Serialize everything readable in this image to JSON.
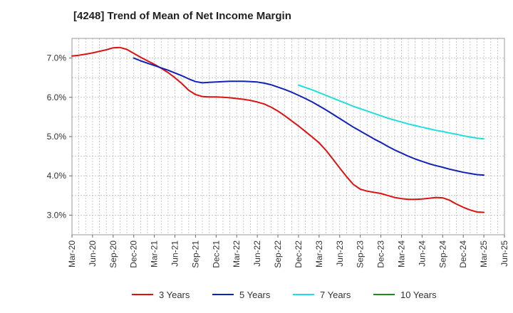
{
  "chart_data": {
    "type": "line",
    "title": "[4248]  Trend of Mean of Net Income Margin",
    "xlabel": "",
    "ylabel": "",
    "x_start": "2020-03",
    "x_end": "2025-06",
    "xticks": [
      "Mar-20",
      "Jun-20",
      "Sep-20",
      "Dec-20",
      "Mar-21",
      "Jun-21",
      "Sep-21",
      "Dec-21",
      "Mar-22",
      "Jun-22",
      "Sep-22",
      "Dec-22",
      "Mar-23",
      "Jun-23",
      "Sep-23",
      "Dec-23",
      "Mar-24",
      "Jun-24",
      "Sep-24",
      "Dec-24",
      "Mar-25",
      "Jun-25"
    ],
    "ylim": [
      2.5,
      7.5
    ],
    "yticks": [
      3.0,
      4.0,
      5.0,
      6.0,
      7.0
    ],
    "ytick_labels": [
      "3.0%",
      "4.0%",
      "5.0%",
      "6.0%",
      "7.0%"
    ],
    "grid": true,
    "legend_position": "bottom",
    "series": [
      {
        "name": "3 Years",
        "color": "#dd1111",
        "points": [
          [
            "2020-03",
            7.05
          ],
          [
            "2020-04",
            7.07
          ],
          [
            "2020-05",
            7.1
          ],
          [
            "2020-06",
            7.13
          ],
          [
            "2020-07",
            7.17
          ],
          [
            "2020-08",
            7.21
          ],
          [
            "2020-09",
            7.26
          ],
          [
            "2020-10",
            7.27
          ],
          [
            "2020-11",
            7.22
          ],
          [
            "2020-12",
            7.12
          ],
          [
            "2021-01",
            7.02
          ],
          [
            "2021-02",
            6.93
          ],
          [
            "2021-03",
            6.84
          ],
          [
            "2021-04",
            6.74
          ],
          [
            "2021-05",
            6.63
          ],
          [
            "2021-06",
            6.5
          ],
          [
            "2021-07",
            6.35
          ],
          [
            "2021-08",
            6.18
          ],
          [
            "2021-09",
            6.07
          ],
          [
            "2021-10",
            6.02
          ],
          [
            "2021-11",
            6.01
          ],
          [
            "2021-12",
            6.01
          ],
          [
            "2022-01",
            6.0
          ],
          [
            "2022-02",
            5.99
          ],
          [
            "2022-03",
            5.97
          ],
          [
            "2022-04",
            5.95
          ],
          [
            "2022-05",
            5.92
          ],
          [
            "2022-06",
            5.88
          ],
          [
            "2022-07",
            5.83
          ],
          [
            "2022-08",
            5.75
          ],
          [
            "2022-09",
            5.65
          ],
          [
            "2022-10",
            5.53
          ],
          [
            "2022-11",
            5.4
          ],
          [
            "2022-12",
            5.27
          ],
          [
            "2023-01",
            5.13
          ],
          [
            "2023-02",
            4.99
          ],
          [
            "2023-03",
            4.84
          ],
          [
            "2023-04",
            4.65
          ],
          [
            "2023-05",
            4.43
          ],
          [
            "2023-06",
            4.2
          ],
          [
            "2023-07",
            3.98
          ],
          [
            "2023-08",
            3.78
          ],
          [
            "2023-09",
            3.66
          ],
          [
            "2023-10",
            3.61
          ],
          [
            "2023-11",
            3.58
          ],
          [
            "2023-12",
            3.55
          ],
          [
            "2024-01",
            3.5
          ],
          [
            "2024-02",
            3.45
          ],
          [
            "2024-03",
            3.42
          ],
          [
            "2024-04",
            3.4
          ],
          [
            "2024-05",
            3.4
          ],
          [
            "2024-06",
            3.41
          ],
          [
            "2024-07",
            3.43
          ],
          [
            "2024-08",
            3.45
          ],
          [
            "2024-09",
            3.44
          ],
          [
            "2024-10",
            3.38
          ],
          [
            "2024-11",
            3.28
          ],
          [
            "2024-12",
            3.2
          ],
          [
            "2025-01",
            3.13
          ],
          [
            "2025-02",
            3.08
          ],
          [
            "2025-03",
            3.07
          ]
        ]
      },
      {
        "name": "5 Years",
        "color": "#1122bb",
        "points": [
          [
            "2020-12",
            7.0
          ],
          [
            "2021-01",
            6.93
          ],
          [
            "2021-02",
            6.87
          ],
          [
            "2021-03",
            6.81
          ],
          [
            "2021-04",
            6.75
          ],
          [
            "2021-05",
            6.69
          ],
          [
            "2021-06",
            6.62
          ],
          [
            "2021-07",
            6.55
          ],
          [
            "2021-08",
            6.47
          ],
          [
            "2021-09",
            6.4
          ],
          [
            "2021-10",
            6.37
          ],
          [
            "2021-11",
            6.38
          ],
          [
            "2021-12",
            6.39
          ],
          [
            "2022-01",
            6.4
          ],
          [
            "2022-02",
            6.41
          ],
          [
            "2022-03",
            6.41
          ],
          [
            "2022-04",
            6.41
          ],
          [
            "2022-05",
            6.4
          ],
          [
            "2022-06",
            6.39
          ],
          [
            "2022-07",
            6.36
          ],
          [
            "2022-08",
            6.32
          ],
          [
            "2022-09",
            6.26
          ],
          [
            "2022-10",
            6.2
          ],
          [
            "2022-11",
            6.13
          ],
          [
            "2022-12",
            6.05
          ],
          [
            "2023-01",
            5.97
          ],
          [
            "2023-02",
            5.88
          ],
          [
            "2023-03",
            5.78
          ],
          [
            "2023-04",
            5.68
          ],
          [
            "2023-05",
            5.57
          ],
          [
            "2023-06",
            5.46
          ],
          [
            "2023-07",
            5.35
          ],
          [
            "2023-08",
            5.24
          ],
          [
            "2023-09",
            5.14
          ],
          [
            "2023-10",
            5.04
          ],
          [
            "2023-11",
            4.94
          ],
          [
            "2023-12",
            4.85
          ],
          [
            "2024-01",
            4.75
          ],
          [
            "2024-02",
            4.66
          ],
          [
            "2024-03",
            4.58
          ],
          [
            "2024-04",
            4.5
          ],
          [
            "2024-05",
            4.43
          ],
          [
            "2024-06",
            4.37
          ],
          [
            "2024-07",
            4.31
          ],
          [
            "2024-08",
            4.26
          ],
          [
            "2024-09",
            4.22
          ],
          [
            "2024-10",
            4.17
          ],
          [
            "2024-11",
            4.13
          ],
          [
            "2024-12",
            4.09
          ],
          [
            "2025-01",
            4.06
          ],
          [
            "2025-02",
            4.03
          ],
          [
            "2025-03",
            4.02
          ]
        ]
      },
      {
        "name": "7 Years",
        "color": "#22dddd",
        "points": [
          [
            "2022-12",
            6.31
          ],
          [
            "2023-01",
            6.25
          ],
          [
            "2023-02",
            6.19
          ],
          [
            "2023-03",
            6.12
          ],
          [
            "2023-04",
            6.05
          ],
          [
            "2023-05",
            5.98
          ],
          [
            "2023-06",
            5.91
          ],
          [
            "2023-07",
            5.84
          ],
          [
            "2023-08",
            5.77
          ],
          [
            "2023-09",
            5.71
          ],
          [
            "2023-10",
            5.65
          ],
          [
            "2023-11",
            5.59
          ],
          [
            "2023-12",
            5.53
          ],
          [
            "2024-01",
            5.47
          ],
          [
            "2024-02",
            5.42
          ],
          [
            "2024-03",
            5.37
          ],
          [
            "2024-04",
            5.32
          ],
          [
            "2024-05",
            5.28
          ],
          [
            "2024-06",
            5.24
          ],
          [
            "2024-07",
            5.2
          ],
          [
            "2024-08",
            5.16
          ],
          [
            "2024-09",
            5.13
          ],
          [
            "2024-10",
            5.09
          ],
          [
            "2024-11",
            5.06
          ],
          [
            "2024-12",
            5.02
          ],
          [
            "2025-01",
            4.99
          ],
          [
            "2025-02",
            4.96
          ],
          [
            "2025-03",
            4.94
          ]
        ]
      },
      {
        "name": "10 Years",
        "color": "#228822",
        "points": []
      }
    ]
  }
}
